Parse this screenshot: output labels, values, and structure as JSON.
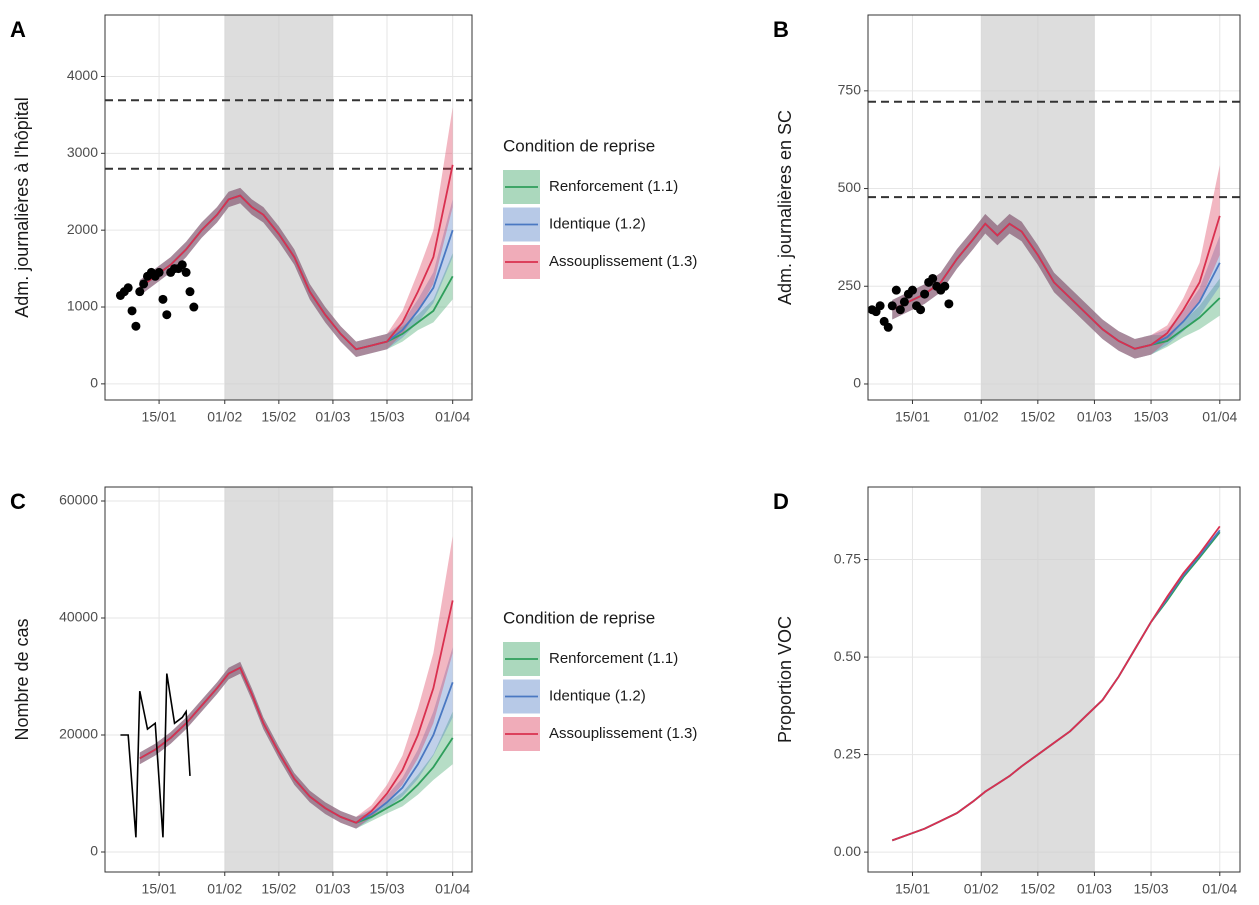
{
  "chart_data": [
    {
      "type": "line",
      "panel_label": "A",
      "ylabel": "Adm. journalières à l'hôpital",
      "legend_title": "Condition de reprise",
      "legend": "right",
      "grid": true,
      "xlim": [
        "01/01",
        "06/04"
      ],
      "xticks": [
        "15/01",
        "01/02",
        "15/02",
        "01/03",
        "15/03",
        "01/04"
      ],
      "ylim": [
        -210,
        4800
      ],
      "yticks": [
        0,
        1000,
        2000,
        3000,
        4000
      ],
      "hlines": [
        2800,
        3690
      ],
      "shaded": [
        "01/02",
        "01/03"
      ],
      "x": [
        "10/01",
        "14/01",
        "18/01",
        "22/01",
        "26/01",
        "30/01",
        "02/02",
        "05/02",
        "08/02",
        "11/02",
        "15/02",
        "19/02",
        "23/02",
        "27/02",
        "03/03",
        "07/03",
        "11/03",
        "15/03",
        "19/03",
        "23/03",
        "27/03",
        "01/04"
      ],
      "series": [
        {
          "name": "Renforcement (1.1)",
          "color": "#2e9e5b",
          "values": [
            1250,
            1400,
            1550,
            1750,
            2000,
            2200,
            2400,
            2450,
            2300,
            2200,
            1950,
            1650,
            1200,
            900,
            650,
            450,
            500,
            550,
            650,
            800,
            950,
            1400
          ],
          "lower": [
            1150,
            1300,
            1450,
            1650,
            1900,
            2100,
            2300,
            2350,
            2200,
            2100,
            1850,
            1550,
            1100,
            800,
            550,
            350,
            400,
            450,
            550,
            700,
            800,
            1100
          ],
          "upper": [
            1350,
            1500,
            1650,
            1850,
            2100,
            2300,
            2500,
            2550,
            2400,
            2300,
            2050,
            1750,
            1300,
            1000,
            750,
            550,
            600,
            650,
            750,
            900,
            1100,
            1700
          ]
        },
        {
          "name": "Identique (1.2)",
          "color": "#4a78c2",
          "values": [
            1250,
            1400,
            1550,
            1750,
            2000,
            2200,
            2400,
            2450,
            2300,
            2200,
            1950,
            1650,
            1200,
            900,
            650,
            450,
            500,
            550,
            700,
            950,
            1250,
            2000
          ],
          "lower": [
            1150,
            1300,
            1450,
            1650,
            1900,
            2100,
            2300,
            2350,
            2200,
            2100,
            1850,
            1550,
            1100,
            800,
            550,
            350,
            400,
            450,
            600,
            800,
            1050,
            1650
          ],
          "upper": [
            1350,
            1500,
            1650,
            1850,
            2100,
            2300,
            2500,
            2550,
            2400,
            2300,
            2050,
            1750,
            1300,
            1000,
            750,
            550,
            600,
            650,
            800,
            1100,
            1450,
            2400
          ]
        },
        {
          "name": "Assouplissement (1.3)",
          "color": "#d9304f",
          "values": [
            1250,
            1400,
            1550,
            1750,
            2000,
            2200,
            2400,
            2450,
            2300,
            2200,
            1950,
            1650,
            1200,
            900,
            650,
            450,
            500,
            550,
            800,
            1200,
            1650,
            2850
          ],
          "lower": [
            1150,
            1300,
            1450,
            1650,
            1900,
            2100,
            2300,
            2350,
            2200,
            2100,
            1850,
            1550,
            1100,
            800,
            550,
            350,
            400,
            450,
            650,
            950,
            1300,
            2300
          ],
          "upper": [
            1350,
            1500,
            1650,
            1850,
            2100,
            2300,
            2500,
            2550,
            2400,
            2300,
            2050,
            1750,
            1300,
            1000,
            750,
            550,
            600,
            650,
            950,
            1450,
            2000,
            3600
          ]
        }
      ],
      "observed_style": "points",
      "observed": {
        "x": [
          "05/01",
          "06/01",
          "07/01",
          "08/01",
          "09/01",
          "10/01",
          "11/01",
          "12/01",
          "13/01",
          "14/01",
          "15/01",
          "16/01",
          "17/01",
          "18/01",
          "19/01",
          "20/01",
          "21/01",
          "22/01",
          "23/01",
          "24/01"
        ],
        "values": [
          1150,
          1200,
          1250,
          950,
          750,
          1200,
          1300,
          1400,
          1450,
          1400,
          1450,
          1100,
          900,
          1450,
          1500,
          1500,
          1550,
          1450,
          1200,
          1000
        ]
      }
    },
    {
      "type": "line",
      "panel_label": "B",
      "ylabel": "Adm. journalières en SC",
      "grid": true,
      "xlim": [
        "04/01",
        "06/04"
      ],
      "xticks": [
        "15/01",
        "01/02",
        "15/02",
        "01/03",
        "15/03",
        "01/04"
      ],
      "ylim": [
        -41,
        944
      ],
      "yticks": [
        0,
        250,
        500,
        750
      ],
      "hlines": [
        478,
        722
      ],
      "shaded": [
        "01/02",
        "01/03"
      ],
      "x": [
        "10/01",
        "14/01",
        "18/01",
        "22/01",
        "26/01",
        "30/01",
        "02/02",
        "05/02",
        "08/02",
        "11/02",
        "15/02",
        "19/02",
        "23/02",
        "27/02",
        "03/03",
        "07/03",
        "11/03",
        "15/03",
        "19/03",
        "23/03",
        "27/03",
        "01/04"
      ],
      "series": [
        {
          "color": "#2e9e5b",
          "values": [
            190,
            210,
            230,
            260,
            320,
            370,
            410,
            380,
            410,
            390,
            330,
            260,
            220,
            180,
            140,
            110,
            90,
            100,
            110,
            140,
            170,
            220
          ],
          "lower": [
            165,
            185,
            205,
            235,
            295,
            345,
            385,
            355,
            385,
            365,
            305,
            235,
            195,
            155,
            115,
            85,
            65,
            75,
            95,
            120,
            140,
            175
          ],
          "upper": [
            215,
            235,
            255,
            285,
            345,
            395,
            435,
            405,
            435,
            415,
            355,
            285,
            245,
            205,
            165,
            135,
            115,
            125,
            125,
            160,
            200,
            270
          ]
        },
        {
          "color": "#4a78c2",
          "values": [
            190,
            210,
            230,
            260,
            320,
            370,
            410,
            380,
            410,
            390,
            330,
            260,
            220,
            180,
            140,
            110,
            90,
            100,
            120,
            160,
            210,
            310
          ],
          "lower": [
            165,
            185,
            205,
            235,
            295,
            345,
            385,
            355,
            385,
            365,
            305,
            235,
            195,
            155,
            115,
            85,
            65,
            75,
            100,
            135,
            175,
            250
          ],
          "upper": [
            215,
            235,
            255,
            285,
            345,
            395,
            435,
            405,
            435,
            415,
            355,
            285,
            245,
            205,
            165,
            135,
            115,
            125,
            140,
            185,
            245,
            380
          ]
        },
        {
          "color": "#d9304f",
          "values": [
            190,
            210,
            230,
            260,
            320,
            370,
            410,
            380,
            410,
            390,
            330,
            260,
            220,
            180,
            140,
            110,
            90,
            100,
            130,
            190,
            260,
            430
          ],
          "lower": [
            165,
            185,
            205,
            235,
            295,
            345,
            385,
            355,
            385,
            365,
            305,
            235,
            195,
            155,
            115,
            85,
            65,
            75,
            110,
            160,
            210,
            330
          ],
          "upper": [
            215,
            235,
            255,
            285,
            345,
            395,
            435,
            405,
            435,
            415,
            355,
            285,
            245,
            205,
            165,
            135,
            115,
            125,
            150,
            220,
            310,
            560
          ]
        }
      ],
      "observed_style": "points",
      "observed": {
        "x": [
          "05/01",
          "06/01",
          "07/01",
          "08/01",
          "09/01",
          "10/01",
          "11/01",
          "12/01",
          "13/01",
          "14/01",
          "15/01",
          "16/01",
          "17/01",
          "18/01",
          "19/01",
          "20/01",
          "21/01",
          "22/01",
          "23/01",
          "24/01"
        ],
        "values": [
          190,
          185,
          200,
          160,
          145,
          200,
          240,
          190,
          210,
          230,
          240,
          200,
          190,
          230,
          260,
          270,
          250,
          240,
          250,
          205
        ]
      }
    },
    {
      "type": "line",
      "panel_label": "C",
      "ylabel": "Nombre de cas",
      "legend_title": "Condition de reprise",
      "legend": "right",
      "grid": true,
      "xlim": [
        "01/01",
        "06/04"
      ],
      "xticks": [
        "15/01",
        "01/02",
        "15/02",
        "01/03",
        "15/03",
        "01/04"
      ],
      "ylim": [
        -3419,
        62393
      ],
      "yticks": [
        0,
        20000,
        40000,
        60000
      ],
      "shaded": [
        "01/02",
        "01/03"
      ],
      "x": [
        "10/01",
        "14/01",
        "18/01",
        "22/01",
        "26/01",
        "30/01",
        "02/02",
        "05/02",
        "08/02",
        "11/02",
        "15/02",
        "19/02",
        "23/02",
        "27/02",
        "03/03",
        "07/03",
        "11/03",
        "15/03",
        "19/03",
        "23/03",
        "27/03",
        "01/04"
      ],
      "series": [
        {
          "name": "Renforcement (1.1)",
          "color": "#2e9e5b",
          "values": [
            16000,
            17500,
            19500,
            22000,
            25000,
            28000,
            30500,
            31500,
            27000,
            22000,
            17000,
            12500,
            9500,
            7500,
            6000,
            5000,
            6000,
            7500,
            9000,
            11500,
            14500,
            19500
          ],
          "lower": [
            15000,
            16500,
            18500,
            21000,
            24000,
            27000,
            29500,
            30500,
            26000,
            21000,
            16000,
            11500,
            8500,
            6500,
            5000,
            4000,
            5300,
            6600,
            7800,
            9800,
            12300,
            15000
          ],
          "upper": [
            17000,
            18500,
            20500,
            23000,
            26000,
            29000,
            31500,
            32500,
            28000,
            23000,
            18000,
            13500,
            10500,
            8500,
            7000,
            6000,
            6700,
            8400,
            10200,
            13200,
            16700,
            24000
          ]
        },
        {
          "name": "Identique (1.2)",
          "color": "#4a78c2",
          "values": [
            16000,
            17500,
            19500,
            22000,
            25000,
            28000,
            30500,
            31500,
            27000,
            22000,
            17000,
            12500,
            9500,
            7500,
            6000,
            5000,
            6500,
            8500,
            11000,
            15000,
            20000,
            29000
          ],
          "lower": [
            15000,
            16500,
            18500,
            21000,
            24000,
            27000,
            29500,
            30500,
            26000,
            21000,
            16000,
            11500,
            8500,
            6500,
            5000,
            4000,
            5700,
            7500,
            9500,
            12500,
            16500,
            23000
          ],
          "upper": [
            17000,
            18500,
            20500,
            23000,
            26000,
            29000,
            31500,
            32500,
            28000,
            23000,
            18000,
            13500,
            10500,
            8500,
            7000,
            6000,
            7300,
            9700,
            12700,
            17500,
            24000,
            35000
          ]
        },
        {
          "name": "Assouplissement (1.3)",
          "color": "#d9304f",
          "values": [
            16000,
            17500,
            19500,
            22000,
            25000,
            28000,
            30500,
            31500,
            27000,
            22000,
            17000,
            12500,
            9500,
            7500,
            6000,
            5000,
            7000,
            10000,
            14000,
            20000,
            28000,
            43000
          ],
          "lower": [
            15000,
            16500,
            18500,
            21000,
            24000,
            27000,
            29500,
            30500,
            26000,
            21000,
            16000,
            11500,
            8500,
            6500,
            5000,
            4000,
            6000,
            8500,
            11500,
            16000,
            22000,
            34000
          ],
          "upper": [
            17000,
            18500,
            20500,
            23000,
            26000,
            29000,
            31500,
            32500,
            28000,
            23000,
            18000,
            13500,
            10500,
            8500,
            7000,
            6000,
            8000,
            11500,
            16500,
            24500,
            34000,
            54000
          ]
        }
      ],
      "observed_style": "line",
      "observed": {
        "x": [
          "05/01",
          "07/01",
          "09/01",
          "10/01",
          "12/01",
          "14/01",
          "16/01",
          "17/01",
          "19/01",
          "21/01",
          "22/01",
          "23/01"
        ],
        "values": [
          20000,
          20000,
          2500,
          27500,
          21000,
          22000,
          2500,
          30500,
          22000,
          23000,
          24000,
          13000
        ]
      }
    },
    {
      "type": "line",
      "panel_label": "D",
      "ylabel": "Proportion VOC",
      "grid": true,
      "xlim": [
        "04/01",
        "06/04"
      ],
      "xticks": [
        "15/01",
        "01/02",
        "15/02",
        "01/03",
        "15/03",
        "01/04"
      ],
      "ylim": [
        -0.051,
        0.936
      ],
      "yticks": [
        {
          "value": 0,
          "label": "0.00"
        },
        {
          "value": 0.25,
          "label": "0.25"
        },
        {
          "value": 0.5,
          "label": "0.50"
        },
        {
          "value": 0.75,
          "label": "0.75"
        }
      ],
      "shaded": [
        "01/02",
        "01/03"
      ],
      "x": [
        "10/01",
        "14/01",
        "18/01",
        "22/01",
        "26/01",
        "30/01",
        "02/02",
        "05/02",
        "08/02",
        "11/02",
        "15/02",
        "19/02",
        "23/02",
        "27/02",
        "03/03",
        "07/03",
        "11/03",
        "15/03",
        "19/03",
        "23/03",
        "27/03",
        "01/04"
      ],
      "series": [
        {
          "color": "#2e9e5b",
          "values": [
            0.03,
            0.045,
            0.06,
            0.08,
            0.1,
            0.13,
            0.155,
            0.175,
            0.195,
            0.22,
            0.25,
            0.28,
            0.31,
            0.35,
            0.39,
            0.45,
            0.52,
            0.59,
            0.645,
            0.705,
            0.755,
            0.82
          ]
        },
        {
          "color": "#4a78c2",
          "values": [
            0.03,
            0.045,
            0.06,
            0.08,
            0.1,
            0.13,
            0.155,
            0.175,
            0.195,
            0.22,
            0.25,
            0.28,
            0.31,
            0.35,
            0.39,
            0.45,
            0.52,
            0.59,
            0.65,
            0.71,
            0.76,
            0.825
          ]
        },
        {
          "color": "#d9304f",
          "values": [
            0.03,
            0.045,
            0.06,
            0.08,
            0.1,
            0.13,
            0.155,
            0.175,
            0.195,
            0.22,
            0.25,
            0.28,
            0.31,
            0.35,
            0.39,
            0.45,
            0.52,
            0.59,
            0.655,
            0.715,
            0.765,
            0.835
          ]
        }
      ]
    }
  ]
}
